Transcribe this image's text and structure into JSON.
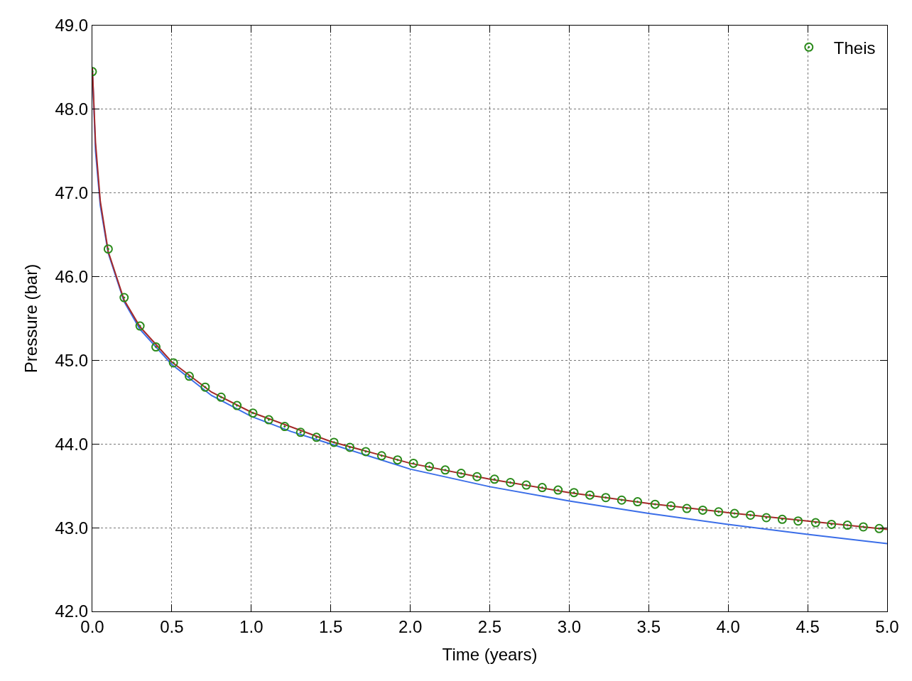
{
  "chart_data": {
    "type": "line",
    "xlabel": "Time (years)",
    "ylabel": "Pressure (bar)",
    "xlim": [
      0,
      5
    ],
    "xticks": [
      {
        "value": 0,
        "label": "0.0"
      },
      0.5,
      {
        "value": 1,
        "label": "1.0"
      },
      1.5,
      {
        "value": 2,
        "label": "2.0"
      },
      2.5,
      {
        "value": 3,
        "label": "3.0"
      },
      3.5,
      {
        "value": 4,
        "label": "4.0"
      },
      4.5,
      {
        "value": 5,
        "label": "5.0"
      }
    ],
    "ylim": [
      42,
      49
    ],
    "yticks": [
      {
        "value": 42,
        "label": "42.0"
      },
      {
        "value": 43,
        "label": "43.0"
      },
      {
        "value": 44,
        "label": "44.0"
      },
      {
        "value": 45,
        "label": "45.0"
      },
      {
        "value": 46,
        "label": "46.0"
      },
      {
        "value": 47,
        "label": "47.0"
      },
      {
        "value": 48,
        "label": "48.0"
      },
      {
        "value": 49,
        "label": "49.0"
      }
    ],
    "grid": true,
    "legend": "top right",
    "line_style": "solid",
    "series": [
      {
        "marker": "none",
        "color": "#3b6ee8",
        "x": [
          0,
          0.02,
          0.05,
          0.1,
          0.2,
          0.3,
          0.5,
          0.75,
          1,
          1.25,
          1.5,
          2,
          2.5,
          3,
          3.5,
          4,
          4.5,
          5
        ],
        "values": [
          48.5,
          47.5,
          46.85,
          46.28,
          45.7,
          45.37,
          44.95,
          44.58,
          44.33,
          44.15,
          44.0,
          43.7,
          43.49,
          43.32,
          43.17,
          43.04,
          42.92,
          42.81
        ]
      },
      {
        "marker": "none",
        "color": "#a52a2a",
        "x": [
          0,
          0.02,
          0.05,
          0.1,
          0.2,
          0.3,
          0.5,
          0.75,
          1,
          1.5,
          2,
          2.5,
          3,
          3.5,
          4,
          4.5,
          5
        ],
        "values": [
          48.5,
          47.6,
          46.9,
          46.3,
          45.72,
          45.4,
          44.98,
          44.62,
          44.38,
          44.03,
          43.77,
          43.58,
          43.42,
          43.29,
          43.18,
          43.08,
          42.98
        ]
      },
      {
        "type": "scatter",
        "marker": "circle",
        "name": "Theis",
        "color": "#2a8a1a",
        "x": [
          0,
          0.1,
          0.2,
          0.3,
          0.4,
          0.51,
          0.61,
          0.71,
          0.81,
          0.91,
          1.01,
          1.11,
          1.21,
          1.31,
          1.41,
          1.52,
          1.62,
          1.72,
          1.82,
          1.92,
          2.02,
          2.12,
          2.22,
          2.32,
          2.42,
          2.53,
          2.63,
          2.73,
          2.83,
          2.93,
          3.03,
          3.13,
          3.23,
          3.33,
          3.43,
          3.54,
          3.64,
          3.74,
          3.84,
          3.94,
          4.04,
          4.14,
          4.24,
          4.34,
          4.44,
          4.55,
          4.65,
          4.75,
          4.85,
          4.95
        ],
        "values": [
          48.45,
          46.33,
          45.75,
          45.41,
          45.16,
          44.97,
          44.81,
          44.68,
          44.56,
          44.46,
          44.37,
          44.29,
          44.21,
          44.14,
          44.08,
          44.02,
          43.96,
          43.91,
          43.86,
          43.81,
          43.77,
          43.73,
          43.69,
          43.65,
          43.61,
          43.58,
          43.54,
          43.51,
          43.48,
          43.45,
          43.42,
          43.39,
          43.36,
          43.33,
          43.31,
          43.28,
          43.26,
          43.23,
          43.21,
          43.19,
          43.17,
          43.15,
          43.12,
          43.1,
          43.08,
          43.06,
          43.04,
          43.03,
          43.01,
          42.99
        ]
      }
    ]
  }
}
